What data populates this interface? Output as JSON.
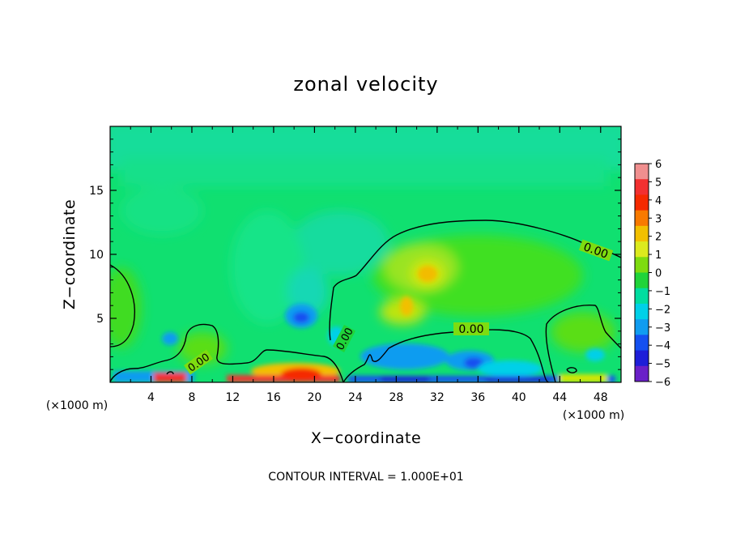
{
  "chart_data": {
    "type": "heatmap",
    "title": "zonal velocity",
    "xlabel": "X−coordinate",
    "ylabel": "Z−coordinate",
    "x_unit_left": "(×1000 m)",
    "x_unit_right": "(×1000 m)",
    "footer": "CONTOUR INTERVAL = 1.000E+01",
    "xlim": [
      0,
      50
    ],
    "ylim": [
      0,
      20
    ],
    "x_ticks": [
      "4",
      "8",
      "12",
      "16",
      "20",
      "24",
      "28",
      "32",
      "36",
      "40",
      "44",
      "48"
    ],
    "y_ticks": [
      "5",
      "10",
      "15"
    ],
    "colorbar": {
      "range": [
        -6,
        6
      ],
      "labels": [
        "6",
        "5",
        "4",
        "3",
        "2",
        "1",
        "0",
        "−1",
        "−2",
        "−3",
        "−4",
        "−5",
        "−6"
      ],
      "colors": [
        "#f08f8f",
        "#f23030",
        "#f52a00",
        "#f87a00",
        "#f2c000",
        "#dcea1e",
        "#7edc10",
        "#20d43a",
        "#00dda0",
        "#00d0e8",
        "#109cf0",
        "#1450f0",
        "#1e1ed8",
        "#6a20c8"
      ]
    },
    "contour_labels": [
      "0.00",
      "0.00",
      "0.00",
      "0.00"
    ],
    "grid": false
  }
}
